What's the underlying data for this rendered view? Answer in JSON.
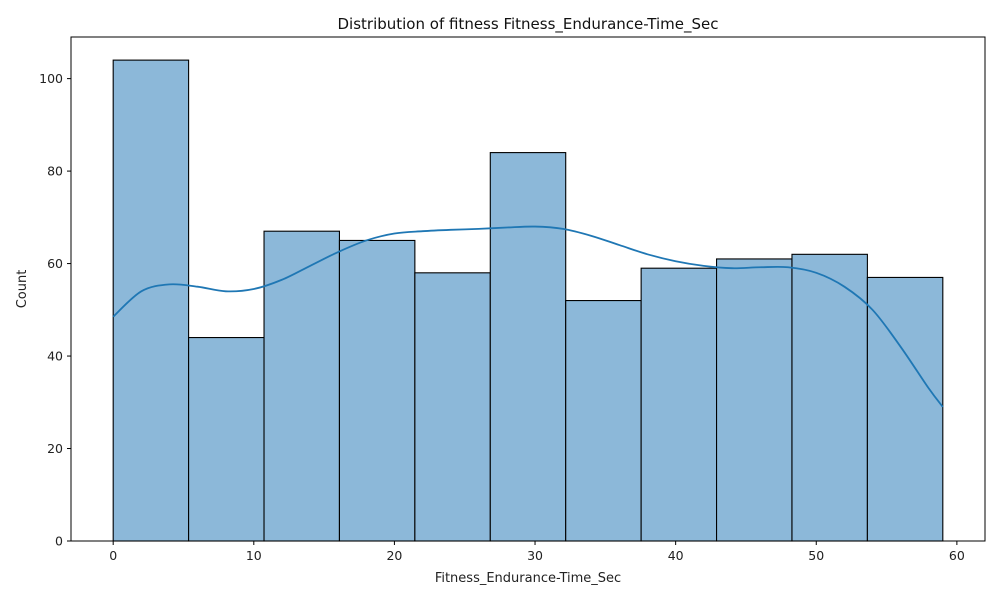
{
  "chart_data": {
    "type": "bar",
    "title": "Distribution of fitness Fitness_Endurance-Time_Sec",
    "xlabel": "Fitness_Endurance-Time_Sec",
    "ylabel": "Count",
    "bin_edges": [
      0,
      5.3636,
      10.7273,
      16.0909,
      21.4545,
      26.8182,
      32.1818,
      37.5455,
      42.9091,
      48.2727,
      53.6364,
      59
    ],
    "values": [
      104,
      44,
      67,
      65,
      58,
      84,
      52,
      59,
      61,
      62,
      57
    ],
    "xlim": [
      -3,
      62
    ],
    "ylim": [
      0,
      109
    ],
    "xticks": [
      0,
      10,
      20,
      30,
      40,
      50,
      60
    ],
    "xtick_labels": [
      "0",
      "10",
      "20",
      "30",
      "40",
      "50",
      "60"
    ],
    "yticks": [
      0,
      20,
      40,
      60,
      80,
      100
    ],
    "ytick_labels": [
      "0",
      "20",
      "40",
      "60",
      "80",
      "100"
    ],
    "kde": {
      "name": "",
      "x": [
        0,
        2,
        4,
        6,
        8,
        10,
        12,
        14,
        16,
        18,
        20,
        22,
        24,
        26,
        28,
        30,
        32,
        34,
        36,
        38,
        40,
        42,
        44,
        46,
        48,
        50,
        52,
        54,
        56,
        58,
        59
      ],
      "y": [
        48.5,
        54,
        55.5,
        55,
        54,
        54.5,
        56.5,
        59.5,
        62.5,
        65,
        66.5,
        67,
        67.3,
        67.5,
        67.8,
        68,
        67.5,
        66,
        64,
        62,
        60.5,
        59.5,
        59,
        59.2,
        59.2,
        58,
        55,
        50,
        42,
        33,
        29
      ]
    },
    "grid": false,
    "legend": "none",
    "colors": {
      "bar_fill": "#8cb8d9",
      "bar_edge": "#000000",
      "kde_line": "#1f77b4",
      "axis": "#000000"
    }
  }
}
